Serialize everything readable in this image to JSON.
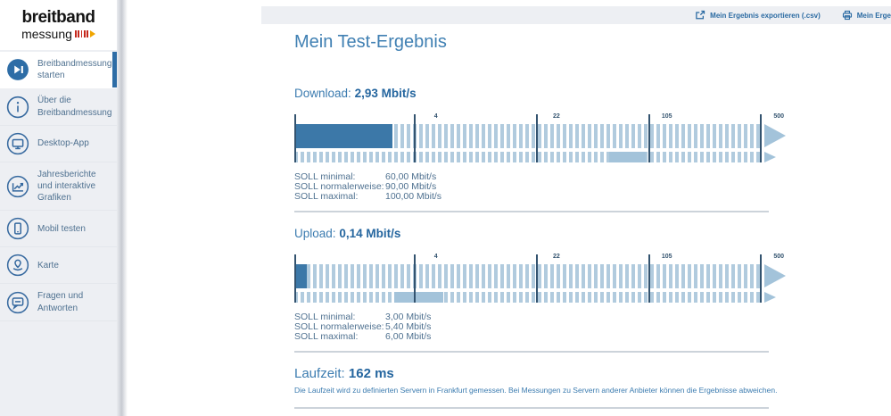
{
  "colors": {
    "accent_blue": "#3c7cb0",
    "value_blue": "#25669f",
    "fill_dark_blue": "#3c78a8",
    "stripe_light_blue": "#b1cbde",
    "band_light_blue": "#a3c3da",
    "tick_line": "#33536f",
    "sidebar_bg": "#edeff3",
    "sidebar_text": "#4f7190",
    "icon_blue": "#36699f",
    "active_icon_bg": "#2e6da6",
    "logo_red": "#c5281c",
    "logo_orange": "#f0a500"
  },
  "logo": {
    "line1": "breitband",
    "line2": "messung"
  },
  "sidebar": {
    "items": [
      {
        "label": "Breitbandmessung starten",
        "icon": "play-circle-icon",
        "active": true
      },
      {
        "label": "Über die Breitbandmessung",
        "icon": "info-circle-icon",
        "active": false
      },
      {
        "label": "Desktop-App",
        "icon": "desktop-icon",
        "active": false
      },
      {
        "label": "Jahresberichte und interaktive Grafiken",
        "icon": "chart-icon",
        "active": false
      },
      {
        "label": "Mobil testen",
        "icon": "mobile-icon",
        "active": false
      },
      {
        "label": "Karte",
        "icon": "map-pin-icon",
        "active": false
      },
      {
        "label": "Fragen und Antworten",
        "icon": "speech-bubble-icon",
        "active": false
      }
    ]
  },
  "topbar": {
    "export_label": "Mein Ergebnis exportieren (.csv)",
    "print_label": "Mein Erge"
  },
  "main": {
    "title": "Mein Test-Ergebnis",
    "download": {
      "label": "Download:",
      "value": "2,93 Mbit/s",
      "soll": [
        {
          "label": "SOLL minimal:",
          "value": "60,00 Mbit/s"
        },
        {
          "label": "SOLL normalerweise:",
          "value": "90,00 Mbit/s"
        },
        {
          "label": "SOLL maximal:",
          "value": "100,00 Mbit/s"
        }
      ]
    },
    "upload": {
      "label": "Upload:",
      "value": "0,14 Mbit/s",
      "soll": [
        {
          "label": "SOLL minimal:",
          "value": "3,00 Mbit/s"
        },
        {
          "label": "SOLL normalerweise:",
          "value": "5,40 Mbit/s"
        },
        {
          "label": "SOLL maximal:",
          "value": "6,00 Mbit/s"
        }
      ]
    },
    "latency": {
      "label": "Laufzeit:",
      "value": "162 ms",
      "note": "Die Laufzeit wird zu definierten Servern in Frankfurt gemessen. Bei Messungen zu Servern anderer Anbieter können die Ergebnisse abweichen."
    }
  },
  "chart_data": [
    {
      "type": "bar",
      "name": "download-gauge",
      "title": "Download",
      "unit": "Mbit/s",
      "scale": "log",
      "scale_min": 0.75,
      "scale_max": 500,
      "ticks": [
        4,
        22,
        105,
        500
      ],
      "measured_value": 2.93,
      "target_band": {
        "min": 60,
        "normal": 90,
        "max": 100
      }
    },
    {
      "type": "bar",
      "name": "upload-gauge",
      "title": "Upload",
      "unit": "Mbit/s",
      "scale": "log",
      "scale_min": 0.75,
      "scale_max": 500,
      "ticks": [
        4,
        22,
        105,
        500
      ],
      "measured_value": 0.14,
      "target_band": {
        "min": 3,
        "normal": 5.4,
        "max": 6
      }
    }
  ]
}
